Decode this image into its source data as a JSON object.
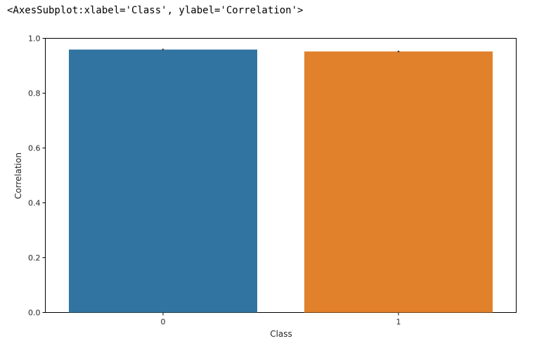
{
  "output_repr": "<AxesSubplot:xlabel='Class', ylabel='Correlation'>",
  "chart_data": {
    "type": "bar",
    "xlabel": "Class",
    "ylabel": "Correlation",
    "categories": [
      "0",
      "1"
    ],
    "values": [
      0.959,
      0.952
    ],
    "error": [
      [
        0.956,
        0.962
      ],
      [
        0.949,
        0.955
      ]
    ],
    "colors": [
      "#3274a1",
      "#e1812c"
    ],
    "ylim": [
      0,
      1.0
    ],
    "yticks": [
      0.0,
      0.2,
      0.4,
      0.6,
      0.8,
      1.0
    ],
    "ytick_labels": [
      "0.0",
      "0.2",
      "0.4",
      "0.6",
      "0.8",
      "1.0"
    ],
    "grid": false
  }
}
